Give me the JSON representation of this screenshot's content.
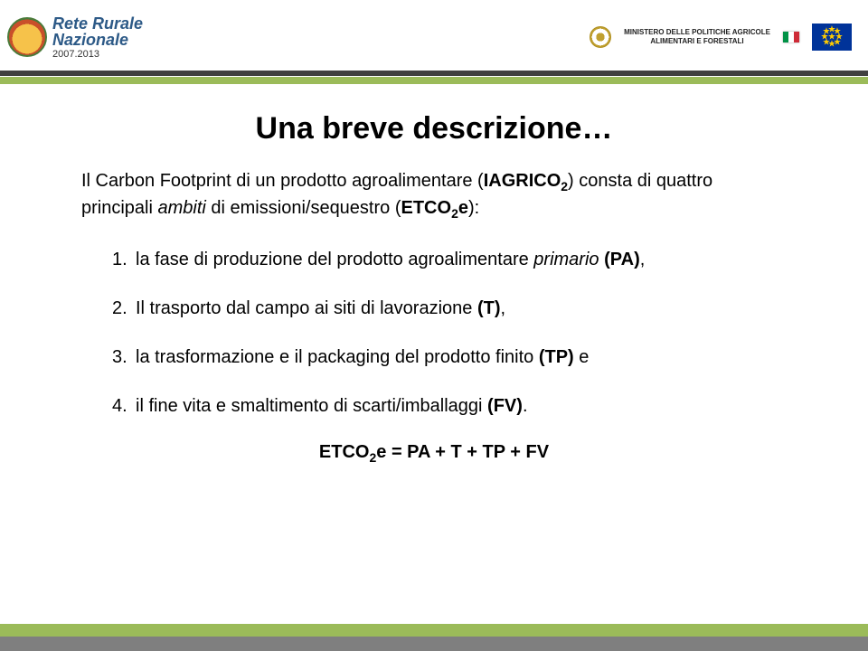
{
  "header": {
    "logo": {
      "line1": "Rete Rurale",
      "line2": "Nazionale",
      "years": "2007.2013"
    },
    "ministry": {
      "line1": "MINISTERO DELLE POLITICHE AGRICOLE",
      "line2": "ALIMENTARI E FORESTALI"
    }
  },
  "colors": {
    "band_dark": "#40403f",
    "band_green": "#9bbb59",
    "band_grey": "#7f7f7f",
    "title_color": "#000000",
    "text_color": "#000000"
  },
  "slide": {
    "title": "Una breve descrizione…",
    "intro_pre": "Il Carbon Footprint di un prodotto agroalimentare (",
    "intro_bold1": "IAGRICO",
    "intro_sub1": "2",
    "intro_mid": ") consta di quattro principali ",
    "intro_em": "ambiti",
    "intro_post": " di emissioni/sequestro (",
    "intro_bold2": "ETCO",
    "intro_sub2": "2",
    "intro_bold3": "e",
    "intro_end": "):",
    "items": [
      {
        "n": "1.",
        "pre": "la fase di produzione del prodotto agroalimentare ",
        "em": "primario",
        "post": " ",
        "b": "(PA)",
        "tail": ","
      },
      {
        "n": "2.",
        "pre": "Il trasporto dal campo ai siti di lavorazione ",
        "em": "",
        "post": "",
        "b": "(T)",
        "tail": ","
      },
      {
        "n": "3.",
        "pre": "la trasformazione e il packaging del prodotto finito ",
        "em": "",
        "post": "",
        "b": "(TP)",
        "tail": " e"
      },
      {
        "n": "4.",
        "pre": "il fine vita e smaltimento di scarti/imballaggi ",
        "em": "",
        "post": "",
        "b": "(FV)",
        "tail": "."
      }
    ],
    "formula_pre": "ETCO",
    "formula_sub": "2",
    "formula_post": "e = PA + T + TP + FV"
  }
}
